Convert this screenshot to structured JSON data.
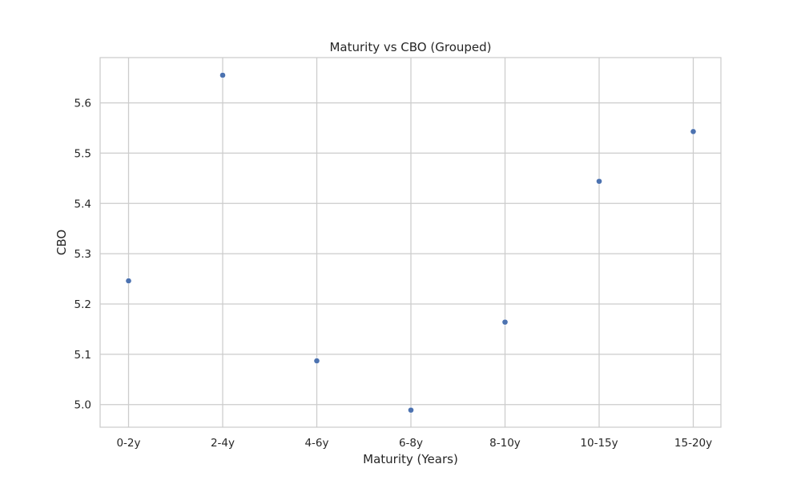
{
  "chart_data": {
    "type": "scatter",
    "title": "Maturity vs CBO (Grouped)",
    "xlabel": "Maturity (Years)",
    "ylabel": "CBO",
    "categories": [
      "0-2y",
      "2-4y",
      "4-6y",
      "6-8y",
      "8-10y",
      "10-15y",
      "15-20y"
    ],
    "values": [
      5.246,
      5.655,
      5.087,
      4.989,
      5.164,
      5.444,
      5.543
    ],
    "ylim": [
      4.955,
      5.69
    ],
    "yticks": [
      5.0,
      5.1,
      5.2,
      5.3,
      5.4,
      5.5,
      5.6
    ],
    "grid": true,
    "legend": "none",
    "colors": {
      "point": "#4c72b0",
      "grid": "#cccccc",
      "frame": "#cccccc",
      "text": "#262626",
      "background": "#ffffff"
    }
  }
}
